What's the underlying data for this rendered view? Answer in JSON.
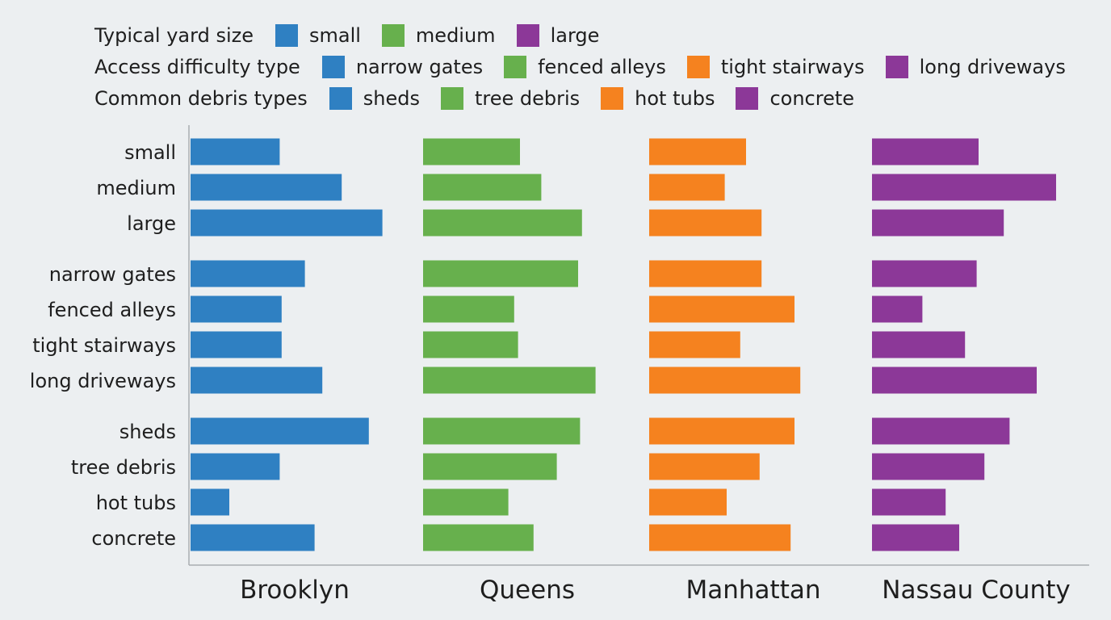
{
  "legend": {
    "rows": [
      {
        "title": "Typical yard size",
        "items": [
          {
            "label": "small",
            "color": "#2f80c2"
          },
          {
            "label": "medium",
            "color": "#67b04d"
          },
          {
            "label": "large",
            "color": "#8c3898"
          }
        ]
      },
      {
        "title": "Access difficulty type",
        "items": [
          {
            "label": "narrow gates",
            "color": "#2f80c2"
          },
          {
            "label": "fenced alleys",
            "color": "#67b04d"
          },
          {
            "label": "tight stairways",
            "color": "#f5821f"
          },
          {
            "label": "long driveways",
            "color": "#8c3898"
          }
        ]
      },
      {
        "title": "Common debris types",
        "items": [
          {
            "label": "sheds",
            "color": "#2f80c2"
          },
          {
            "label": "tree debris",
            "color": "#67b04d"
          },
          {
            "label": "hot tubs",
            "color": "#f5821f"
          },
          {
            "label": "concrete",
            "color": "#8c3898"
          }
        ]
      }
    ]
  },
  "chart_data": {
    "type": "bar",
    "orientation": "horizontal",
    "categories": [
      "small",
      "medium",
      "large",
      "narrow gates",
      "fenced alleys",
      "tight stairways",
      "long driveways",
      "sheds",
      "tree debris",
      "hot tubs",
      "concrete"
    ],
    "groups": [
      3,
      4,
      4
    ],
    "series": [
      {
        "name": "Brooklyn",
        "color": "#2f80c2",
        "values": [
          4.6,
          7.8,
          9.9,
          5.9,
          4.7,
          4.7,
          6.8,
          9.2,
          4.6,
          2.0,
          6.4
        ]
      },
      {
        "name": "Queens",
        "color": "#67b04d",
        "values": [
          5.0,
          6.1,
          8.2,
          8.0,
          4.7,
          4.9,
          8.9,
          8.1,
          6.9,
          4.4,
          5.7
        ]
      },
      {
        "name": "Manhattan",
        "color": "#f5821f",
        "values": [
          5.0,
          3.9,
          5.8,
          5.8,
          7.5,
          4.7,
          7.8,
          7.5,
          5.7,
          4.0,
          7.3
        ]
      },
      {
        "name": "Nassau County",
        "color": "#8c3898",
        "values": [
          5.5,
          9.5,
          6.8,
          5.4,
          2.6,
          4.8,
          8.5,
          7.1,
          5.8,
          3.8,
          4.5
        ]
      }
    ],
    "xlim": [
      0,
      10
    ],
    "grid": false,
    "legend_position": "top-left"
  }
}
